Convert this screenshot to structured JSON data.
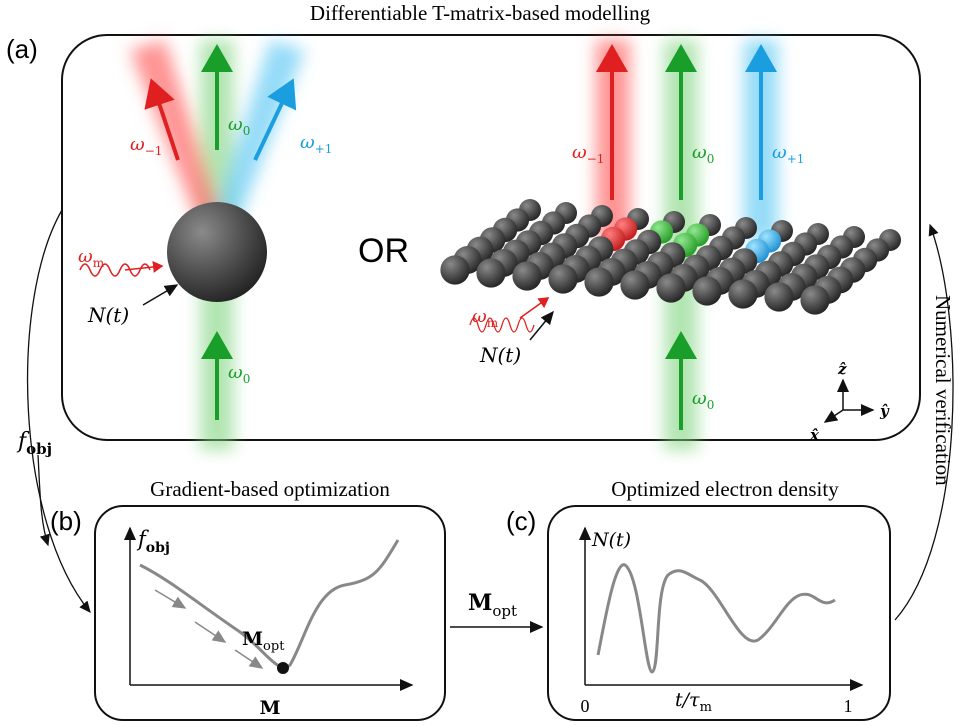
{
  "panel_a": {
    "label": "(a)",
    "title": "Differentiable T-matrix-based modelling",
    "or": "OR",
    "single": {
      "omega_minus": {
        "base": "ω",
        "sub": "−1"
      },
      "omega_zero_top": {
        "base": "ω",
        "sub": "0"
      },
      "omega_plus": {
        "base": "ω",
        "sub": "+1"
      },
      "omega_m": {
        "base": "ω",
        "sub": "m"
      },
      "density": "N(t)",
      "omega_zero_bottom": {
        "base": "ω",
        "sub": "0"
      }
    },
    "lattice": {
      "omega_minus": {
        "base": "ω",
        "sub": "−1"
      },
      "omega_zero_top": {
        "base": "ω",
        "sub": "0"
      },
      "omega_plus": {
        "base": "ω",
        "sub": "+1"
      },
      "omega_m": {
        "base": "ω",
        "sub": "m"
      },
      "density": "N(t)",
      "omega_zero_bottom": {
        "base": "ω",
        "sub": "0"
      }
    },
    "axes": {
      "z": "ẑ",
      "y": "ŷ",
      "x": "x̂"
    }
  },
  "f_obj": {
    "base": "f",
    "sub": "obj"
  },
  "numerical_verification": "Numerical verification",
  "panel_b": {
    "label": "(b)",
    "title": "Gradient-based optimization",
    "y_axis": {
      "base": "f",
      "sub": "obj"
    },
    "x_axis": "M",
    "minimum": {
      "base": "M",
      "sub": "opt"
    }
  },
  "transfer": {
    "base": "M",
    "sub": "opt"
  },
  "panel_c": {
    "label": "(c)",
    "title": "Optimized electron density",
    "y_axis": "N(t)",
    "x_axis": {
      "base": "t/τ",
      "sub": "m"
    },
    "x_start": "0",
    "x_end": "1"
  }
}
